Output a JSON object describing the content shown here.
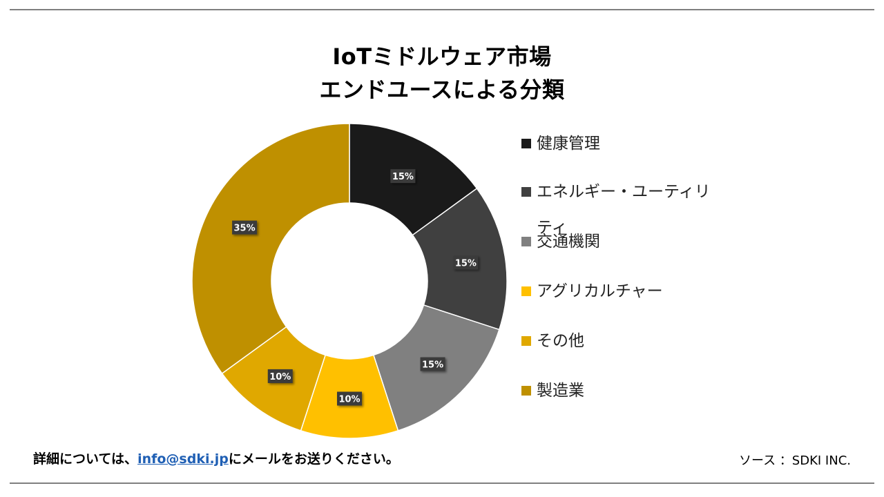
{
  "chart_data": {
    "type": "pie",
    "subtype": "donut",
    "title_line1": "IoTミドルウェア市場",
    "title_line2": "エンドユースによる分類",
    "categories": [
      "健康管理",
      "エネルギー・ユーティリティ",
      "交通機関",
      "アグリカルチャー",
      "その他",
      "製造業"
    ],
    "values": [
      15,
      15,
      15,
      10,
      10,
      35
    ],
    "value_labels": [
      "15%",
      "15%",
      "15%",
      "10%",
      "10%",
      "35%"
    ],
    "colors": [
      "#1a1a1a",
      "#404040",
      "#808080",
      "#ffc000",
      "#e0a800",
      "#bf9000"
    ],
    "legend_position": "right",
    "start_angle": "12 o'clock",
    "direction": "clockwise"
  },
  "footer": {
    "contact_prefix": "詳細については、",
    "contact_email": "info@sdki.jp",
    "contact_suffix": "にメールをお送りください。",
    "source": "ソース ：SDKI INC."
  }
}
